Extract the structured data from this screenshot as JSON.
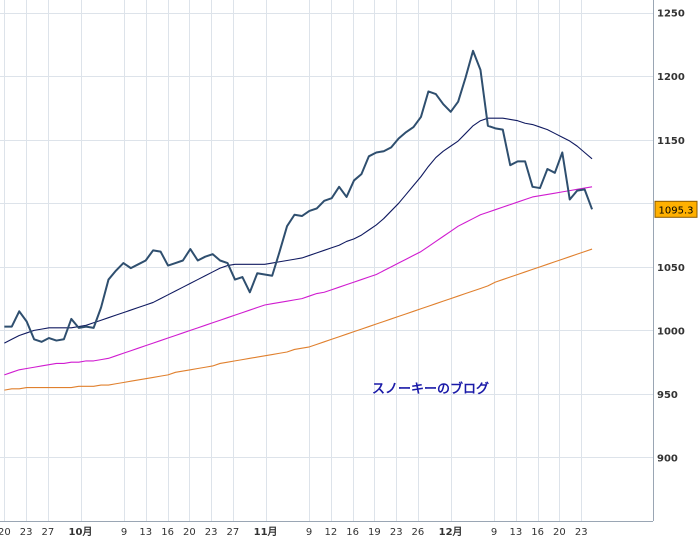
{
  "chart_data": {
    "type": "line",
    "ylim": [
      850,
      1260
    ],
    "xlim": [
      -0.4,
      59.6
    ],
    "y_ticks": [
      900,
      950,
      1000,
      1050,
      1100,
      1150,
      1200,
      1250
    ],
    "y_tick_labels_shown": [
      "900",
      "950",
      "1000",
      "1050",
      "1150",
      "1200",
      "1250"
    ],
    "x_ticks": [
      {
        "i": 0,
        "label": "20",
        "bold": false
      },
      {
        "i": 2,
        "label": "23",
        "bold": false
      },
      {
        "i": 4,
        "label": "27",
        "bold": false
      },
      {
        "i": 7,
        "label": "10月",
        "bold": true
      },
      {
        "i": 11,
        "label": "9",
        "bold": false
      },
      {
        "i": 13,
        "label": "13",
        "bold": false
      },
      {
        "i": 15,
        "label": "16",
        "bold": false
      },
      {
        "i": 17,
        "label": "20",
        "bold": false
      },
      {
        "i": 19,
        "label": "23",
        "bold": false
      },
      {
        "i": 21,
        "label": "27",
        "bold": false
      },
      {
        "i": 24,
        "label": "11月",
        "bold": true
      },
      {
        "i": 28,
        "label": "9",
        "bold": false
      },
      {
        "i": 30,
        "label": "12",
        "bold": false
      },
      {
        "i": 32,
        "label": "16",
        "bold": false
      },
      {
        "i": 34,
        "label": "19",
        "bold": false
      },
      {
        "i": 36,
        "label": "23",
        "bold": false
      },
      {
        "i": 38,
        "label": "26",
        "bold": false
      },
      {
        "i": 41,
        "label": "12月",
        "bold": true
      },
      {
        "i": 45,
        "label": "9",
        "bold": false
      },
      {
        "i": 47,
        "label": "13",
        "bold": false
      },
      {
        "i": 49,
        "label": "16",
        "bold": false
      },
      {
        "i": 51,
        "label": "20",
        "bold": false
      },
      {
        "i": 53,
        "label": "23",
        "bold": false
      }
    ],
    "grid": true,
    "last_value": "1095.3",
    "watermark": "スノーキーのブログ",
    "series": [
      {
        "color": "#2f4f6f",
        "values": [
          1003,
          1003,
          1015,
          1007,
          993,
          991,
          994,
          992,
          993,
          1009,
          1002,
          1003,
          1002,
          1018,
          1040,
          1047,
          1053,
          1049,
          1052,
          1055,
          1063,
          1062,
          1051,
          1053,
          1055,
          1064,
          1055,
          1058,
          1060,
          1055,
          1053,
          1040,
          1042,
          1030,
          1045,
          1044,
          1043,
          1062,
          1082,
          1091,
          1090,
          1094,
          1096,
          1102,
          1104,
          1113,
          1105,
          1118,
          1123,
          1137,
          1140,
          1141,
          1144,
          1151,
          1156,
          1160,
          1168,
          1188,
          1186,
          1178,
          1172,
          1180,
          1199,
          1220,
          1205,
          1161,
          1159,
          1158,
          1130,
          1133,
          1133,
          1113,
          1112,
          1127,
          1124,
          1140,
          1103,
          1110,
          1111,
          1095.3
        ]
      },
      {
        "color": "#101a60",
        "values": [
          990,
          993,
          996,
          998,
          1000,
          1001,
          1002,
          1002,
          1002,
          1002,
          1003,
          1004,
          1006,
          1008,
          1010,
          1012,
          1014,
          1016,
          1018,
          1020,
          1022,
          1025,
          1028,
          1031,
          1034,
          1037,
          1040,
          1043,
          1046,
          1049,
          1051,
          1052,
          1052,
          1052,
          1052,
          1052,
          1053,
          1054,
          1055,
          1056,
          1057,
          1059,
          1061,
          1063,
          1065,
          1067,
          1070,
          1072,
          1075,
          1079,
          1083,
          1088,
          1094,
          1100,
          1107,
          1114,
          1121,
          1129,
          1136,
          1141,
          1145,
          1149,
          1155,
          1161,
          1165,
          1167,
          1167,
          1167,
          1166,
          1165,
          1163,
          1162,
          1160,
          1158,
          1155,
          1152,
          1149,
          1145,
          1140,
          1135
        ]
      },
      {
        "color": "#d01cd0",
        "values": [
          965,
          967,
          969,
          970,
          971,
          972,
          973,
          974,
          974,
          975,
          975,
          976,
          976,
          977,
          978,
          980,
          982,
          984,
          986,
          988,
          990,
          992,
          994,
          996,
          998,
          1000,
          1002,
          1004,
          1006,
          1008,
          1010,
          1012,
          1014,
          1016,
          1018,
          1020,
          1021,
          1022,
          1023,
          1024,
          1025,
          1027,
          1029,
          1030,
          1032,
          1034,
          1036,
          1038,
          1040,
          1042,
          1044,
          1047,
          1050,
          1053,
          1056,
          1059,
          1062,
          1066,
          1070,
          1074,
          1078,
          1082,
          1085,
          1088,
          1091,
          1093,
          1095,
          1097,
          1099,
          1101,
          1103,
          1105,
          1106,
          1107,
          1108,
          1109,
          1110,
          1111,
          1112,
          1113
        ]
      },
      {
        "color": "#e0802e",
        "values": [
          953,
          954,
          954,
          955,
          955,
          955,
          955,
          955,
          955,
          955,
          956,
          956,
          956,
          957,
          957,
          958,
          959,
          960,
          961,
          962,
          963,
          964,
          965,
          967,
          968,
          969,
          970,
          971,
          972,
          974,
          975,
          976,
          977,
          978,
          979,
          980,
          981,
          982,
          983,
          985,
          986,
          987,
          989,
          991,
          993,
          995,
          997,
          999,
          1001,
          1003,
          1005,
          1007,
          1009,
          1011,
          1013,
          1015,
          1017,
          1019,
          1021,
          1023,
          1025,
          1027,
          1029,
          1031,
          1033,
          1035,
          1038,
          1040,
          1042,
          1044,
          1046,
          1048,
          1050,
          1052,
          1054,
          1056,
          1058,
          1060,
          1062,
          1064
        ]
      }
    ]
  }
}
